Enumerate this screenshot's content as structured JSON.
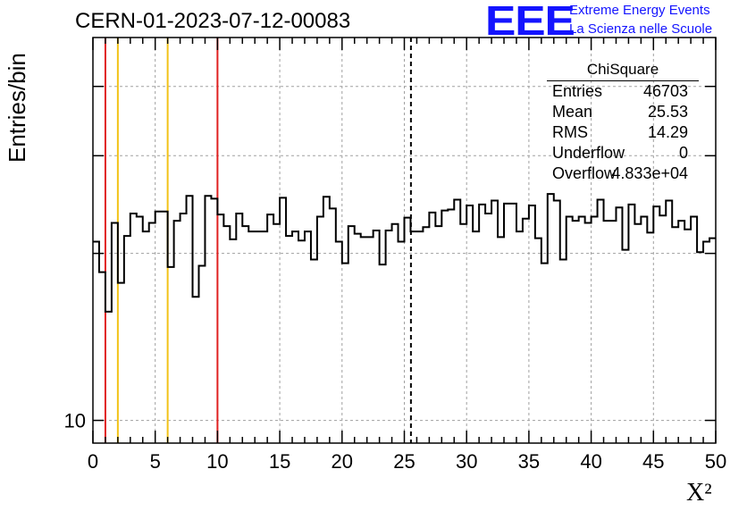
{
  "header": {
    "run_title": "CERN-01-2023-07-12-00083",
    "logo_text": "EEE",
    "org_line1": "Extreme Energy Events",
    "org_line2": "La Scienza nelle Scuole"
  },
  "stats": {
    "title": "ChiSquare",
    "rows": [
      {
        "key": "Entries",
        "value": "46703"
      },
      {
        "key": "Mean",
        "value": "25.53"
      },
      {
        "key": "RMS",
        "value": "14.29"
      },
      {
        "key": "Underflow",
        "value": "0"
      },
      {
        "key": "Overflow",
        "value": "4.833e+04"
      }
    ]
  },
  "chart_data": {
    "type": "histogram",
    "title": "CERN-01-2023-07-12-00083",
    "xlabel": "X²",
    "ylabel": "Entries/bin",
    "xlim": [
      0,
      50
    ],
    "ylim": [
      9.1,
      49
    ],
    "yscale": "log",
    "grid": true,
    "bin_width": 0.5,
    "x_ticks": [
      "0",
      "5",
      "10",
      "15",
      "20",
      "25",
      "30",
      "35",
      "40",
      "45",
      "50"
    ],
    "y_ticks": [
      "10"
    ],
    "values": [
      21,
      18.5,
      15.7,
      22.7,
      17.7,
      21.5,
      23.6,
      23.3,
      21.9,
      22.7,
      23.8,
      23.8,
      18.9,
      22.9,
      23.6,
      25.4,
      16.7,
      19.0,
      25.4,
      25.1,
      23.5,
      22.4,
      21.2,
      23.6,
      22.4,
      21.9,
      21.9,
      21.9,
      23.5,
      22.6,
      25.2,
      21.5,
      21.9,
      21.1,
      21.9,
      19.5,
      23.3,
      25.3,
      24.1,
      21.0,
      19.2,
      22.4,
      21.7,
      21.4,
      21.4,
      22.0,
      19.1,
      22.0,
      22.6,
      21.0,
      23.2,
      21.9,
      21.9,
      22.3,
      23.7,
      22.4,
      23.9,
      24.0,
      25.0,
      22.6,
      24.4,
      21.9,
      24.5,
      23.6,
      24.9,
      21.4,
      24.6,
      24.6,
      21.9,
      23.1,
      24.4,
      21.3,
      19.2,
      25.6,
      24.9,
      19.5,
      23.3,
      22.9,
      23.3,
      22.7,
      23.3,
      25.0,
      22.9,
      22.9,
      24.2,
      20.3,
      24.5,
      22.6,
      23.3,
      21.8,
      24.3,
      23.4,
      24.9,
      22.3,
      22.9,
      22.1,
      23.3,
      20.1,
      21.0,
      21.3
    ],
    "markers": [
      {
        "x": 1,
        "color": "#e02020",
        "style": "solid"
      },
      {
        "x": 2,
        "color": "#f2c318",
        "style": "solid"
      },
      {
        "x": 6,
        "color": "#f2c318",
        "style": "solid"
      },
      {
        "x": 10,
        "color": "#e02020",
        "style": "solid"
      },
      {
        "x": 25.53,
        "color": "#000000",
        "style": "dashed"
      }
    ],
    "colors": {
      "line": "#000000",
      "grid": "#a0a0a0"
    }
  }
}
